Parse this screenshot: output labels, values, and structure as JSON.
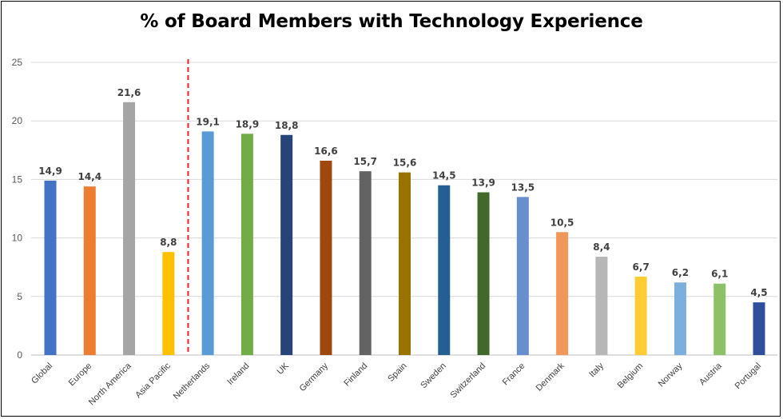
{
  "chart_data": {
    "type": "bar",
    "title": "% of Board Members with Technology Experience",
    "xlabel": "",
    "ylabel": "",
    "ylim": [
      0,
      25
    ],
    "yticks": [
      "0",
      "5",
      "10",
      "15",
      "20",
      "25"
    ],
    "grid": true,
    "legend": "none",
    "categories": [
      "Global",
      "Europe",
      "North America",
      "Asia Pacific",
      "Netherlands",
      "Ireland",
      "UK",
      "Germany",
      "Finland",
      "Spain",
      "Sweden",
      "Switzerland",
      "France",
      "Denmark",
      "Italy",
      "Belgium",
      "Norway",
      "Austria",
      "Portugal"
    ],
    "values": [
      14.9,
      14.4,
      21.6,
      8.8,
      19.1,
      18.9,
      18.8,
      16.6,
      15.7,
      15.6,
      14.5,
      13.9,
      13.5,
      10.5,
      8.4,
      6.7,
      6.2,
      6.1,
      4.5
    ],
    "value_labels": [
      "14,9",
      "14,4",
      "21,6",
      "8,8",
      "19,1",
      "18,9",
      "18,8",
      "16,6",
      "15,7",
      "15,6",
      "14,5",
      "13,9",
      "13,5",
      "10,5",
      "8,4",
      "6,7",
      "6,2",
      "6,1",
      "4,5"
    ],
    "colors": [
      "#4472C4",
      "#ED7D31",
      "#A5A5A5",
      "#FFC000",
      "#5B9BD5",
      "#70AD47",
      "#264478",
      "#9E480E",
      "#636363",
      "#997300",
      "#255E91",
      "#43682B",
      "#698ED0",
      "#F1975A",
      "#B7B7B7",
      "#FFCD33",
      "#7CAFDD",
      "#8CC168",
      "#2F4F9C"
    ],
    "separator": {
      "after_category": "Asia Pacific",
      "style": "dashed",
      "color": "#E8232A"
    }
  }
}
